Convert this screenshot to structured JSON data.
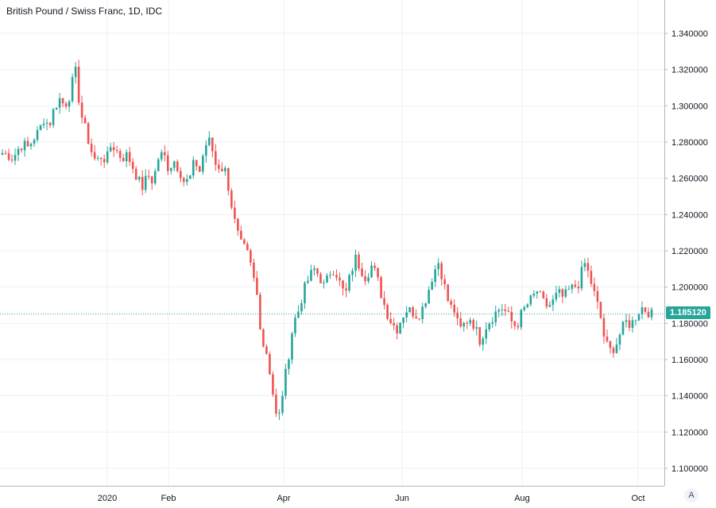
{
  "chart_data": {
    "type": "candlestick",
    "title": "British Pound / Swiss Franc, 1D, IDC",
    "xlabel": "",
    "ylabel": "",
    "ylim": [
      1.09,
      1.35
    ],
    "yticks": [
      "1.340000",
      "1.320000",
      "1.300000",
      "1.280000",
      "1.260000",
      "1.240000",
      "1.220000",
      "1.200000",
      "1.180000",
      "1.160000",
      "1.140000",
      "1.120000",
      "1.100000"
    ],
    "xticks": [
      "2020",
      "Feb",
      "Apr",
      "Jun",
      "Aug",
      "Oct"
    ],
    "current_price": "1.185120",
    "grid": true,
    "up_color": "#26a69a",
    "down_color": "#ef5350",
    "close_series": [
      1.274,
      1.273,
      1.271,
      1.276,
      1.279,
      1.277,
      1.282,
      1.286,
      1.293,
      1.289,
      1.299,
      1.304,
      1.3,
      1.306,
      1.321,
      1.297,
      1.287,
      1.276,
      1.269,
      1.272,
      1.27,
      1.279,
      1.275,
      1.271,
      1.273,
      1.267,
      1.26,
      1.255,
      1.262,
      1.258,
      1.271,
      1.274,
      1.265,
      1.27,
      1.265,
      1.258,
      1.259,
      1.27,
      1.264,
      1.278,
      1.281,
      1.268,
      1.266,
      1.264,
      1.247,
      1.232,
      1.223,
      1.22,
      1.21,
      1.196,
      1.17,
      1.163,
      1.143,
      1.123,
      1.143,
      1.16,
      1.18,
      1.187,
      1.198,
      1.205,
      1.21,
      1.206,
      1.2,
      1.208,
      1.21,
      1.202,
      1.195,
      1.207,
      1.216,
      1.21,
      1.205,
      1.212,
      1.207,
      1.195,
      1.186,
      1.18,
      1.177,
      1.184,
      1.188,
      1.186,
      1.184,
      1.189,
      1.198,
      1.208,
      1.214,
      1.202,
      1.19,
      1.187,
      1.176,
      1.18,
      1.183,
      1.178,
      1.17,
      1.178,
      1.182,
      1.186,
      1.189,
      1.186,
      1.181,
      1.178,
      1.186,
      1.19,
      1.194,
      1.198,
      1.192,
      1.189,
      1.192,
      1.197,
      1.194,
      1.198,
      1.2,
      1.202,
      1.214,
      1.206,
      1.196,
      1.186,
      1.17,
      1.165,
      1.167,
      1.175,
      1.181,
      1.179,
      1.184,
      1.189,
      1.187,
      1.185
    ]
  }
}
